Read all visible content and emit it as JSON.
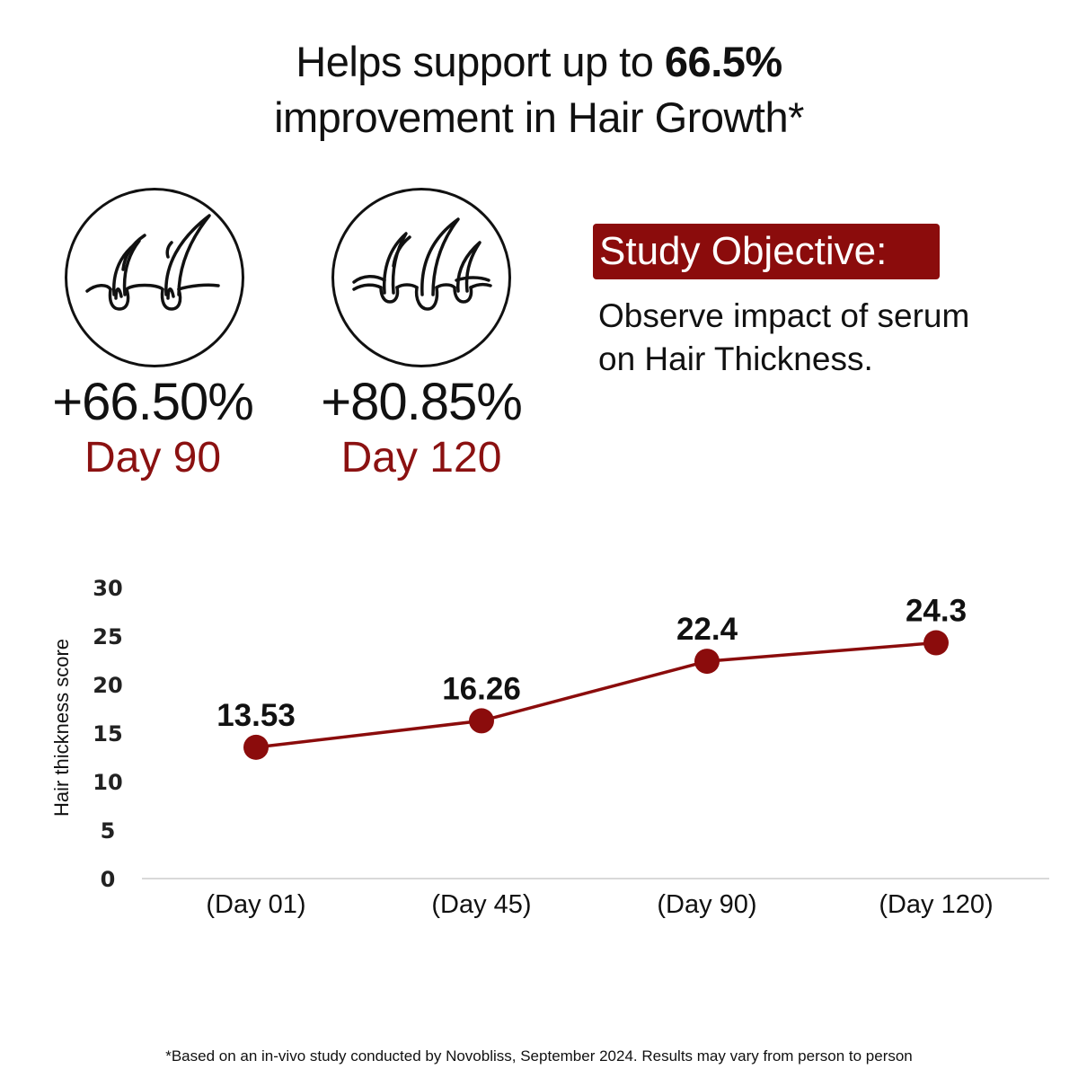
{
  "headline": {
    "text_before": "Helps support up to ",
    "text_bold": "66.5%",
    "line2": "improvement in Hair Growth*"
  },
  "stats": [
    {
      "value": "+66.50%",
      "day": "Day 90",
      "icon": "two-hair-follicles-icon"
    },
    {
      "value": "+80.85%",
      "day": "Day 120",
      "icon": "three-hair-follicles-icon"
    }
  ],
  "objective": {
    "badge": "Study Objective:",
    "line1": "Observe impact of serum",
    "line2": "on Hair Thickness."
  },
  "colors": {
    "accent": "#8b0c0c",
    "text": "#111111",
    "axis": "#d9d9d9"
  },
  "chart_data": {
    "type": "line",
    "categories": [
      "(Day 01)",
      "(Day 45)",
      "(Day 90)",
      "(Day 120)"
    ],
    "values": [
      13.53,
      16.26,
      22.4,
      24.3
    ],
    "data_labels": [
      "13.53",
      "16.26",
      "22.4",
      "24.3"
    ],
    "ylabel": "Hair thickness score",
    "ylim": [
      0,
      30
    ],
    "yticks": [
      0,
      5,
      10,
      15,
      20,
      25,
      30
    ],
    "grid": false,
    "marker": "circle"
  },
  "footnote": "*Based on an in-vivo study conducted by Novobliss, September 2024. Results may vary from person to person"
}
